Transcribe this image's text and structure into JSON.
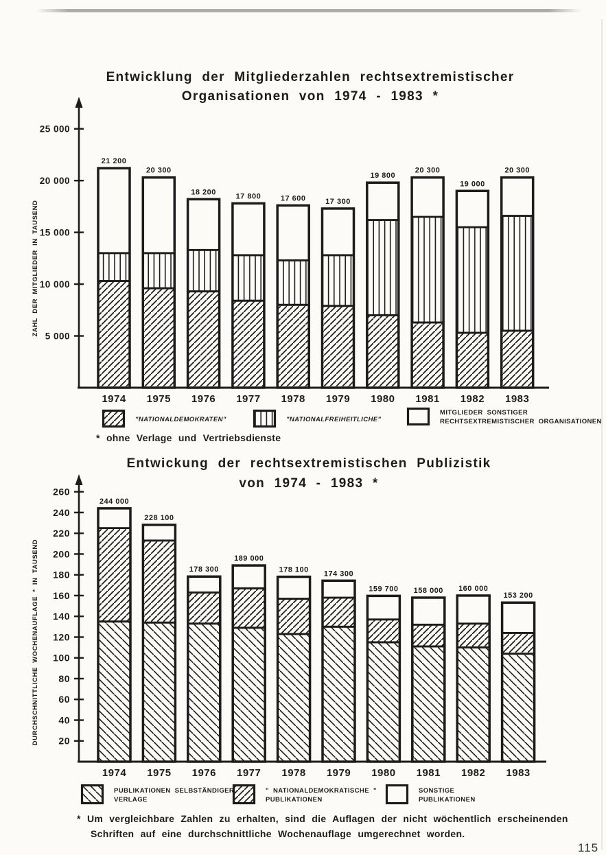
{
  "page": {
    "number": "115",
    "paper_color": "#fcfbf8",
    "ink_color": "#1c1c1c"
  },
  "chart_data": [
    {
      "type": "bar",
      "stacked": true,
      "grid": false,
      "legend_position": "bottom",
      "title": "Entwicklung der Mitgliederzahlen rechtsextremistischer",
      "title_line2": "Organisationen von 1974 - 1983 *",
      "ylabel": "ZAHL DER MITGLIEDER IN TAUSEND",
      "xlabel": "",
      "ylim": [
        0,
        27500
      ],
      "categories": [
        "1974",
        "1975",
        "1976",
        "1977",
        "1978",
        "1979",
        "1980",
        "1981",
        "1982",
        "1983"
      ],
      "series": [
        {
          "name": "\"NATIONALDEMOKRATEN\"",
          "pattern": "hatch-f",
          "values": [
            10300,
            9600,
            9300,
            8400,
            8000,
            7900,
            7000,
            6300,
            5300,
            5500
          ]
        },
        {
          "name": "\"NATIONALFREIHEITLICHE\"",
          "pattern": "hatch-v",
          "values": [
            2700,
            3400,
            4000,
            4400,
            4300,
            4900,
            9200,
            10200,
            10200,
            11100
          ]
        },
        {
          "name": "MITGLIEDER SONSTIGER RECHTSEXTREMISTISCHER ORGANISATIONEN",
          "pattern": "none",
          "values": [
            8200,
            7300,
            4900,
            5000,
            5300,
            4500,
            3600,
            3800,
            3500,
            3700
          ]
        }
      ],
      "totals": [
        21200,
        20300,
        18200,
        17800,
        17600,
        17300,
        19800,
        20300,
        19000,
        20300
      ],
      "total_labels": [
        "21 200",
        "20 300",
        "18 200",
        "17 800",
        "17 600",
        "17 300",
        "19 800",
        "20 300",
        "19 000",
        "20 300"
      ],
      "yticks": [
        {
          "v": 5000,
          "label": "5 000"
        },
        {
          "v": 10000,
          "label": "10 000"
        },
        {
          "v": 15000,
          "label": "15 000"
        },
        {
          "v": 20000,
          "label": "20 000"
        },
        {
          "v": 25000,
          "label": "25 000"
        }
      ],
      "footnote": "* ohne Verlage und Vertriebsdienste",
      "legend": [
        {
          "label": "\"NATIONALDEMOKRATEN\"",
          "label2": "",
          "pattern": "hatch-f",
          "italic": true
        },
        {
          "label": "\"NATIONALFREIHEITLICHE\"",
          "label2": "",
          "pattern": "hatch-v",
          "italic": true
        },
        {
          "label": "MITGLIEDER SONSTIGER",
          "label2": "RECHTSEXTREMISTISCHER ORGANISATIONEN",
          "pattern": "none",
          "italic": false
        }
      ]
    },
    {
      "type": "bar",
      "stacked": true,
      "grid": false,
      "legend_position": "bottom",
      "title": "Entwickung der rechtsextremistischen Publizistik",
      "title_line2": "von 1974 - 1983 *",
      "ylabel": "DURCHSCHNITTLICHE WOCHENAUFLAGE * IN TAUSEND",
      "xlabel": "",
      "ylim": [
        0,
        271
      ],
      "unit": "thousand",
      "categories": [
        "1974",
        "1975",
        "1976",
        "1977",
        "1978",
        "1979",
        "1980",
        "1981",
        "1982",
        "1983"
      ],
      "series": [
        {
          "name": "PUBLIKATIONEN SELBSTÄNDIGER VERLAGE",
          "pattern": "hatch-b",
          "values": [
            135,
            134,
            133,
            129,
            123,
            130,
            115,
            111,
            110,
            104
          ]
        },
        {
          "name": "\"NATIONALDEMOKRATISCHE\" PUBLIKATIONEN",
          "pattern": "hatch-f",
          "values": [
            90,
            79,
            30,
            38,
            34,
            28,
            22,
            21,
            23,
            20
          ]
        },
        {
          "name": "SONSTIGE PUBLIKATIONEN",
          "pattern": "none",
          "values": [
            19,
            15.1,
            15.3,
            22,
            21.1,
            16.3,
            22.7,
            26,
            27,
            29.2
          ]
        }
      ],
      "totals": [
        244000,
        228100,
        178300,
        189000,
        178100,
        174300,
        159700,
        158000,
        160000,
        153200
      ],
      "total_labels": [
        "244 000",
        "228 100",
        "178 300",
        "189 000",
        "178 100",
        "174 300",
        "159 700",
        "158 000",
        "160 000",
        "153 200"
      ],
      "yticks": [
        {
          "v": 20,
          "label": "20"
        },
        {
          "v": 40,
          "label": "40"
        },
        {
          "v": 60,
          "label": "60"
        },
        {
          "v": 80,
          "label": "80"
        },
        {
          "v": 100,
          "label": "100"
        },
        {
          "v": 120,
          "label": "120"
        },
        {
          "v": 140,
          "label": "140"
        },
        {
          "v": 160,
          "label": "160"
        },
        {
          "v": 180,
          "label": "180"
        },
        {
          "v": 200,
          "label": "200"
        },
        {
          "v": 220,
          "label": "220"
        },
        {
          "v": 240,
          "label": "240"
        },
        {
          "v": 260,
          "label": "260"
        }
      ],
      "footnote": "* Um vergleichbare Zahlen zu erhalten, sind die Auflagen der nicht wöchentlich erscheinenden",
      "footnote_line2": "Schriften auf eine durchschnittliche Wochenauflage umgerechnet worden.",
      "legend": [
        {
          "label": "PUBLIKATIONEN SELBSTÄNDIGER",
          "label2": "VERLAGE",
          "pattern": "hatch-b",
          "italic": false
        },
        {
          "label": "\" NATIONALDEMOKRATISCHE \"",
          "label2": "PUBLIKATIONEN",
          "pattern": "hatch-f",
          "italic": false
        },
        {
          "label": "SONSTIGE",
          "label2": "PUBLIKATIONEN",
          "pattern": "none",
          "italic": false
        }
      ]
    }
  ]
}
